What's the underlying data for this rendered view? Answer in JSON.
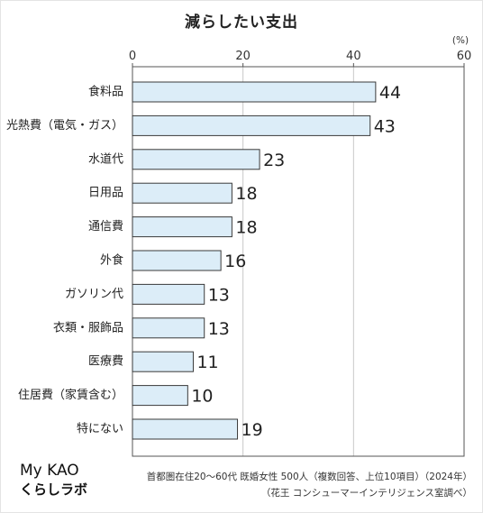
{
  "chart_data": {
    "type": "bar",
    "orientation": "horizontal",
    "title": "減らしたい支出",
    "unit_label": "(%)",
    "categories": [
      "食料品",
      "光熱費（電気・ガス）",
      "水道代",
      "日用品",
      "通信費",
      "外食",
      "ガソリン代",
      "衣類・服飾品",
      "医療費",
      "住居費（家賃含む）",
      "特にない"
    ],
    "values": [
      44,
      43,
      23,
      18,
      18,
      16,
      13,
      13,
      11,
      10,
      19
    ],
    "xlim": [
      0,
      60
    ],
    "xticks": [
      "0",
      "20",
      "40",
      "60"
    ],
    "grid": true
  },
  "footer": {
    "logo_text": "My KAO",
    "brand_sub": "くらしラボ",
    "note_1": "首都圏在住20～60代 既婚女性 500人（複数回答、上位10項目）（2024年）",
    "note_2": "（花王 コンシューマーインテリジェンス室調べ）"
  },
  "colors": {
    "bar_fill": "#dcedf8",
    "bar_stroke": "#3a3a3a",
    "grid": "#c8c8c8",
    "axis": "#555555"
  }
}
